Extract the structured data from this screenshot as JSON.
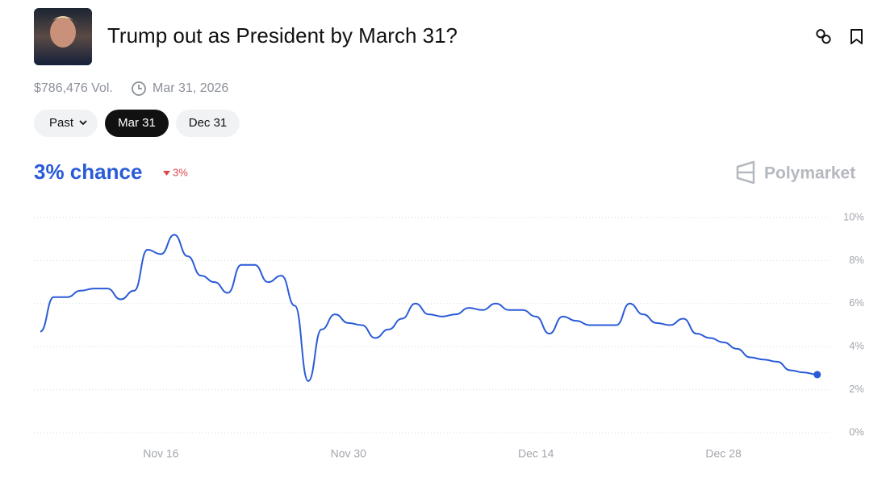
{
  "header": {
    "title": "Trump out as President by March 31?",
    "volume": "$786,476 Vol.",
    "end_date": "Mar 31, 2026"
  },
  "tabs": [
    "Past",
    "Mar 31",
    "Dec 31"
  ],
  "summary": {
    "chance": "3% chance",
    "change": "3%",
    "brand": "Polymarket"
  },
  "chart_data": {
    "type": "line",
    "color": "#2a5bd7",
    "x": [
      "Nov 7",
      "Nov 8",
      "Nov 9",
      "Nov 10",
      "Nov 11",
      "Nov 12",
      "Nov 13",
      "Nov 14",
      "Nov 15",
      "Nov 16",
      "Nov 17",
      "Nov 18",
      "Nov 19",
      "Nov 20",
      "Nov 21",
      "Nov 22",
      "Nov 23",
      "Nov 24",
      "Nov 25",
      "Nov 26",
      "Nov 27",
      "Nov 28",
      "Nov 29",
      "Nov 30",
      "Dec 1",
      "Dec 2",
      "Dec 3",
      "Dec 4",
      "Dec 5",
      "Dec 6",
      "Dec 7",
      "Dec 8",
      "Dec 9",
      "Dec 10",
      "Dec 11",
      "Dec 12",
      "Dec 13",
      "Dec 14",
      "Dec 15",
      "Dec 16",
      "Dec 17",
      "Dec 18",
      "Dec 19",
      "Dec 20",
      "Dec 21",
      "Dec 22",
      "Dec 23",
      "Dec 24",
      "Dec 25",
      "Dec 26",
      "Dec 27",
      "Dec 28",
      "Dec 29",
      "Dec 30",
      "Dec 31",
      "Jan 1",
      "Jan 2",
      "Jan 3",
      "Jan 4"
    ],
    "values": [
      4.7,
      6.3,
      6.3,
      6.6,
      6.7,
      6.7,
      6.2,
      6.6,
      8.5,
      8.3,
      9.2,
      8.2,
      7.3,
      7.0,
      6.5,
      7.8,
      7.8,
      7.0,
      7.3,
      5.9,
      2.4,
      4.8,
      5.5,
      5.1,
      5.0,
      4.4,
      4.8,
      5.3,
      6.0,
      5.5,
      5.4,
      5.5,
      5.8,
      5.7,
      6.0,
      5.7,
      5.7,
      5.4,
      4.6,
      5.4,
      5.2,
      5.0,
      5.0,
      5.0,
      6.0,
      5.5,
      5.1,
      5.0,
      5.3,
      4.6,
      4.4,
      4.2,
      3.9,
      3.5,
      3.4,
      3.3,
      2.9,
      2.8,
      2.7
    ],
    "xticks": [
      "Nov 16",
      "Nov 30",
      "Dec 14",
      "Dec 28"
    ],
    "ylim": [
      0,
      10
    ],
    "yticks": [
      {
        "value": 0,
        "label": "0%"
      },
      {
        "value": 2,
        "label": "2%"
      },
      {
        "value": 4,
        "label": "4%"
      },
      {
        "value": 6,
        "label": "6%"
      },
      {
        "value": 8,
        "label": "8%"
      },
      {
        "value": 10,
        "label": "10%"
      }
    ],
    "grid": true
  }
}
